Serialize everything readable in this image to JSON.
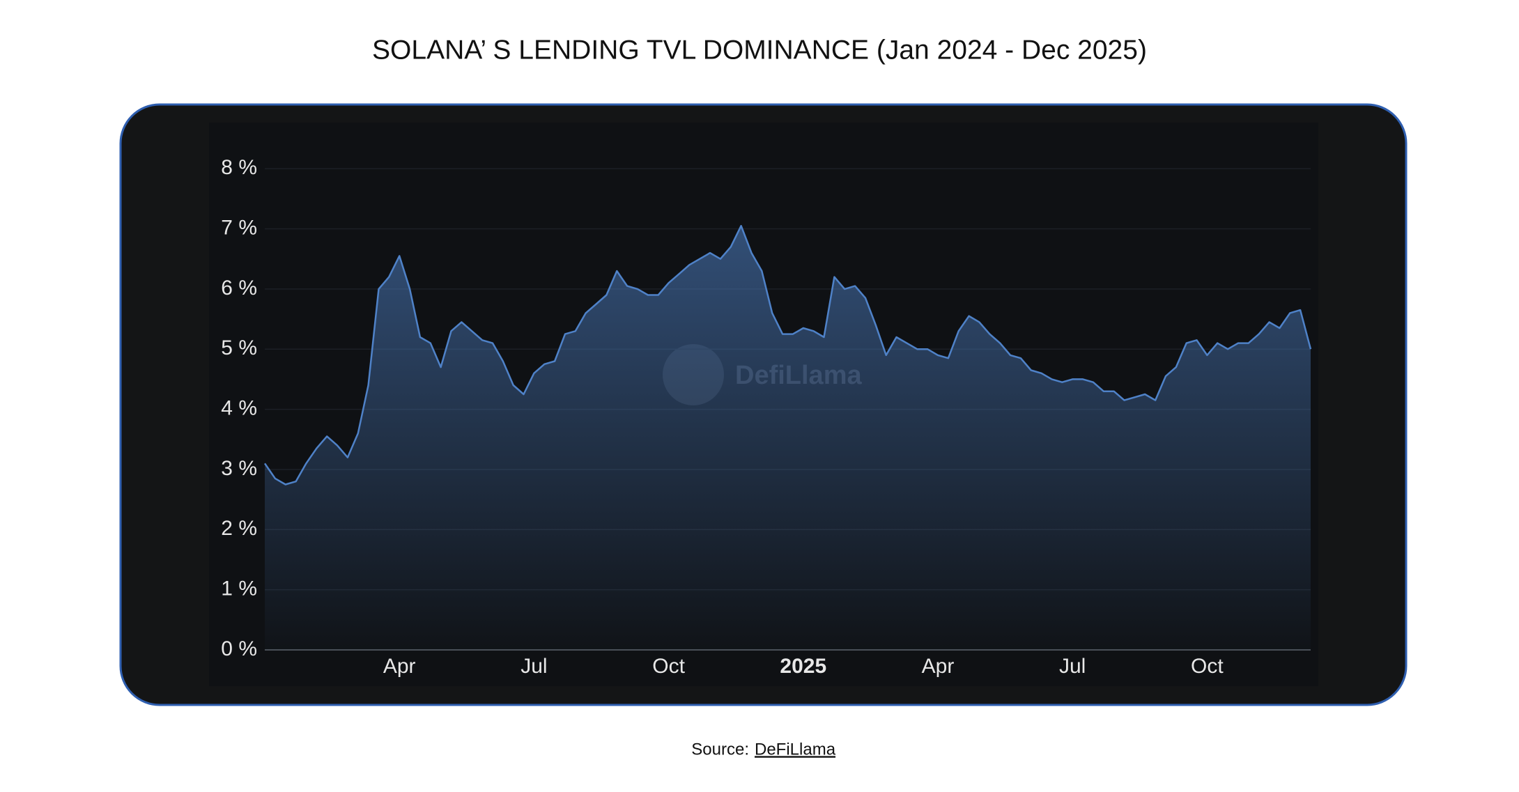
{
  "chart_data": {
    "type": "area",
    "title": "SOLANA’ S LENDING TVL DOMINANCE (Jan 2024 - Dec 2025)",
    "watermark": "DefiLlama",
    "source_label": "Source:",
    "source_link": "DeFiLlama",
    "color": "#4f82c8",
    "grid": true,
    "ylim": [
      0,
      8.5
    ],
    "yticks": [
      {
        "value": 0,
        "label": "0 %"
      },
      {
        "value": 1,
        "label": "1 %"
      },
      {
        "value": 2,
        "label": "2 %"
      },
      {
        "value": 3,
        "label": "3 %"
      },
      {
        "value": 4,
        "label": "4 %"
      },
      {
        "value": 5,
        "label": "5 %"
      },
      {
        "value": 6,
        "label": "6 %"
      },
      {
        "value": 7,
        "label": "7 %"
      },
      {
        "value": 8,
        "label": "8 %"
      }
    ],
    "categories": [
      null,
      null,
      null,
      null,
      null,
      null,
      null,
      null,
      null,
      null,
      null,
      null,
      null,
      "Apr",
      null,
      null,
      null,
      null,
      null,
      null,
      null,
      null,
      null,
      null,
      null,
      null,
      "Jul",
      null,
      null,
      null,
      null,
      null,
      null,
      null,
      null,
      null,
      null,
      null,
      null,
      "Oct",
      null,
      null,
      null,
      null,
      null,
      null,
      null,
      null,
      null,
      null,
      null,
      null,
      "2025",
      null,
      null,
      null,
      null,
      null,
      null,
      null,
      null,
      null,
      null,
      null,
      null,
      "Apr",
      null,
      null,
      null,
      null,
      null,
      null,
      null,
      null,
      null,
      null,
      null,
      null,
      "Jul",
      null,
      null,
      null,
      null,
      null,
      null,
      null,
      null,
      null,
      null,
      null,
      null,
      "Oct",
      null,
      null,
      null,
      null,
      null,
      null,
      null,
      null,
      null,
      null
    ],
    "values": [
      3.1,
      2.85,
      2.75,
      2.8,
      3.1,
      3.35,
      3.55,
      3.4,
      3.2,
      3.6,
      4.4,
      6.0,
      6.2,
      6.55,
      6.0,
      5.2,
      5.1,
      4.7,
      5.3,
      5.45,
      5.3,
      5.15,
      5.1,
      4.8,
      4.4,
      4.25,
      4.6,
      4.75,
      4.8,
      5.25,
      5.3,
      5.6,
      5.75,
      5.9,
      6.3,
      6.05,
      6.0,
      5.9,
      5.9,
      6.1,
      6.25,
      6.4,
      6.5,
      6.6,
      6.5,
      6.7,
      7.05,
      6.6,
      6.3,
      5.6,
      5.25,
      5.25,
      5.35,
      5.3,
      5.2,
      6.2,
      6.0,
      6.05,
      5.85,
      5.4,
      4.9,
      5.2,
      5.1,
      5.0,
      5.0,
      4.9,
      4.85,
      5.3,
      5.55,
      5.45,
      5.25,
      5.1,
      4.9,
      4.85,
      4.65,
      4.6,
      4.5,
      4.45,
      4.5,
      4.5,
      4.45,
      4.3,
      4.3,
      4.15,
      4.2,
      4.25,
      4.15,
      4.55,
      4.7,
      5.1,
      5.15,
      4.9,
      5.1,
      5.0,
      5.1,
      5.1,
      5.25,
      5.45,
      5.35,
      5.6,
      5.65,
      5.0
    ]
  }
}
